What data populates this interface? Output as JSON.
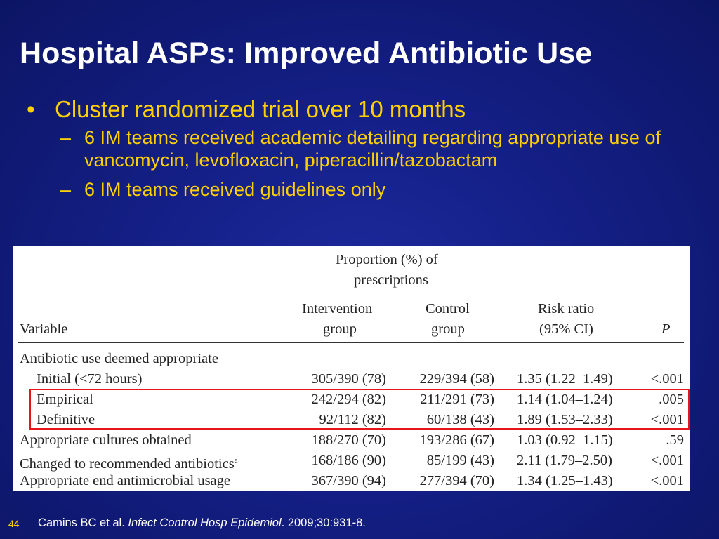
{
  "slide": {
    "title": "Hospital ASPs: Improved Antibiotic Use",
    "bullet": "Cluster randomized trial over 10 months",
    "sub_bullets": [
      "6 IM teams received academic detailing regarding appropriate use of vancomycin, levofloxacin, piperacillin/tazobactam",
      "6 IM teams received guidelines only"
    ],
    "page_number": "44",
    "citation": {
      "authors": "Camins BC et al. ",
      "journal": "Infect Control Hosp Epidemiol",
      "details": ". 2009;30:931-8."
    }
  },
  "table": {
    "group_header_line1": "Proportion (%) of",
    "group_header_line2": "prescriptions",
    "col_variable": "Variable",
    "col_intervention_line1": "Intervention",
    "col_intervention_line2": "group",
    "col_control_line1": "Control",
    "col_control_line2": "group",
    "col_risk_line1": "Risk ratio",
    "col_risk_line2": "(95% CI)",
    "col_p": "P",
    "section_label": "Antibiotic use deemed appropriate",
    "rows": [
      {
        "variable": "Initial (<72 hours)",
        "intervention": "305/390 (78)",
        "control": "229/394 (58)",
        "risk": "1.35 (1.22–1.49)",
        "p": "<.001"
      },
      {
        "variable": "Empirical",
        "intervention": "242/294 (82)",
        "control": "211/291 (73)",
        "risk": "1.14 (1.04–1.24)",
        "p": ".005"
      },
      {
        "variable": "Definitive",
        "intervention": "92/112 (82)",
        "control": "60/138 (43)",
        "risk": "1.89 (1.53–2.33)",
        "p": "<.001"
      },
      {
        "variable": "Appropriate cultures obtained",
        "intervention": "188/270 (70)",
        "control": "193/286 (67)",
        "risk": "1.03 (0.92–1.15)",
        "p": ".59"
      },
      {
        "variable": "Changed to recommended antibiotics",
        "sup": "a",
        "intervention": "168/186 (90)",
        "control": "85/199 (43)",
        "risk": "2.11 (1.79–2.50)",
        "p": "<.001"
      },
      {
        "variable": "Appropriate end antimicrobial usage",
        "intervention": "367/390 (94)",
        "control": "277/394 (70)",
        "risk": "1.34 (1.25–1.43)",
        "p": "<.001"
      }
    ]
  }
}
